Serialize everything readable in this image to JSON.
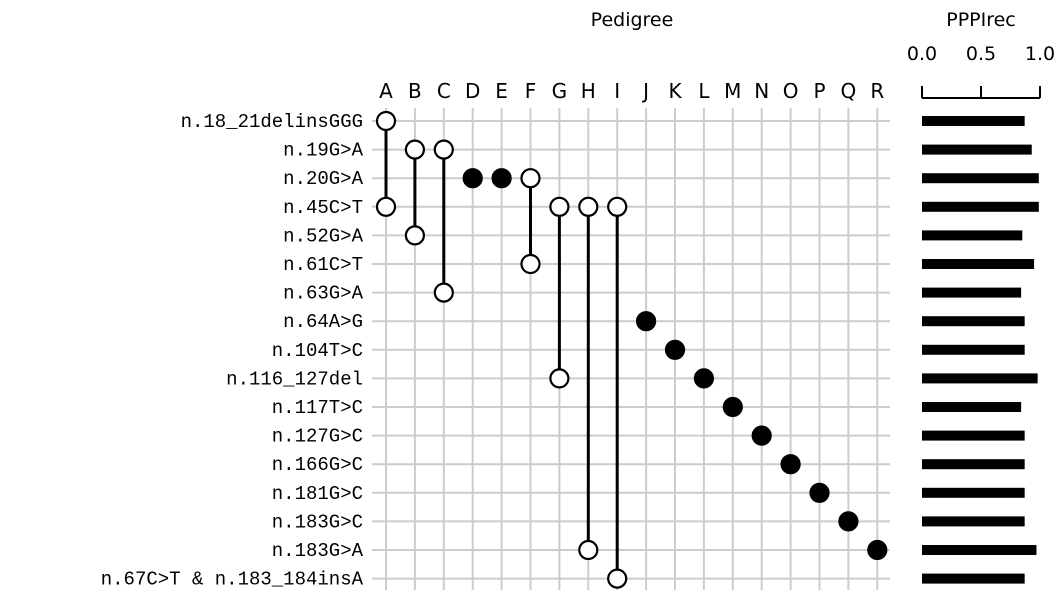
{
  "chart_data": [
    {
      "type": "matrix",
      "title": "Pedigree",
      "columns": [
        "A",
        "B",
        "C",
        "D",
        "E",
        "F",
        "G",
        "H",
        "I",
        "J",
        "K",
        "L",
        "M",
        "N",
        "O",
        "P",
        "Q",
        "R"
      ],
      "rows": [
        "n.18_21delinsGGG",
        "n.19G>A",
        "n.20G>A",
        "n.45C>T",
        "n.52G>A",
        "n.61C>T",
        "n.63G>A",
        "n.64A>G",
        "n.104T>C",
        "n.116_127del",
        "n.117T>C",
        "n.127G>C",
        "n.166G>C",
        "n.181G>C",
        "n.183G>C",
        "n.183G>A",
        "n.67C>T & n.183_184insA"
      ],
      "pedigrees": [
        {
          "column": "A",
          "variants": [
            "n.18_21delinsGGG",
            "n.45C>T"
          ],
          "style": "open"
        },
        {
          "column": "B",
          "variants": [
            "n.19G>A",
            "n.52G>A"
          ],
          "style": "open"
        },
        {
          "column": "C",
          "variants": [
            "n.19G>A",
            "n.63G>A"
          ],
          "style": "open"
        },
        {
          "column": "D",
          "variants": [
            "n.20G>A"
          ],
          "style": "filled"
        },
        {
          "column": "E",
          "variants": [
            "n.20G>A"
          ],
          "style": "filled"
        },
        {
          "column": "F",
          "variants": [
            "n.20G>A",
            "n.61C>T"
          ],
          "style": "open"
        },
        {
          "column": "G",
          "variants": [
            "n.45C>T",
            "n.116_127del"
          ],
          "style": "open"
        },
        {
          "column": "H",
          "variants": [
            "n.45C>T",
            "n.183G>A"
          ],
          "style": "open"
        },
        {
          "column": "I",
          "variants": [
            "n.45C>T",
            "n.67C>T & n.183_184insA"
          ],
          "style": "open"
        },
        {
          "column": "J",
          "variants": [
            "n.64A>G"
          ],
          "style": "filled"
        },
        {
          "column": "K",
          "variants": [
            "n.104T>C"
          ],
          "style": "filled"
        },
        {
          "column": "L",
          "variants": [
            "n.116_127del"
          ],
          "style": "filled"
        },
        {
          "column": "M",
          "variants": [
            "n.117T>C"
          ],
          "style": "filled"
        },
        {
          "column": "N",
          "variants": [
            "n.127G>C"
          ],
          "style": "filled"
        },
        {
          "column": "O",
          "variants": [
            "n.166G>C"
          ],
          "style": "filled"
        },
        {
          "column": "P",
          "variants": [
            "n.181G>C"
          ],
          "style": "filled"
        },
        {
          "column": "Q",
          "variants": [
            "n.183G>C"
          ],
          "style": "filled"
        },
        {
          "column": "R",
          "variants": [
            "n.183G>A"
          ],
          "style": "filled"
        }
      ],
      "grid": true
    },
    {
      "type": "bar",
      "orientation": "horizontal",
      "title": "PPPIrec",
      "categories": [
        "n.18_21delinsGGG",
        "n.19G>A",
        "n.20G>A",
        "n.45C>T",
        "n.52G>A",
        "n.61C>T",
        "n.63G>A",
        "n.64A>G",
        "n.104T>C",
        "n.116_127del",
        "n.117T>C",
        "n.127G>C",
        "n.166G>C",
        "n.181G>C",
        "n.183G>C",
        "n.183G>A",
        "n.67C>T & n.183_184insA"
      ],
      "values": [
        0.87,
        0.93,
        0.99,
        0.99,
        0.85,
        0.95,
        0.84,
        0.87,
        0.87,
        0.98,
        0.84,
        0.87,
        0.87,
        0.87,
        0.87,
        0.97,
        0.87
      ],
      "xlim": [
        0,
        1.0
      ],
      "xticks": [
        "0.0",
        "0.5",
        "1.0"
      ],
      "grid": false
    }
  ]
}
